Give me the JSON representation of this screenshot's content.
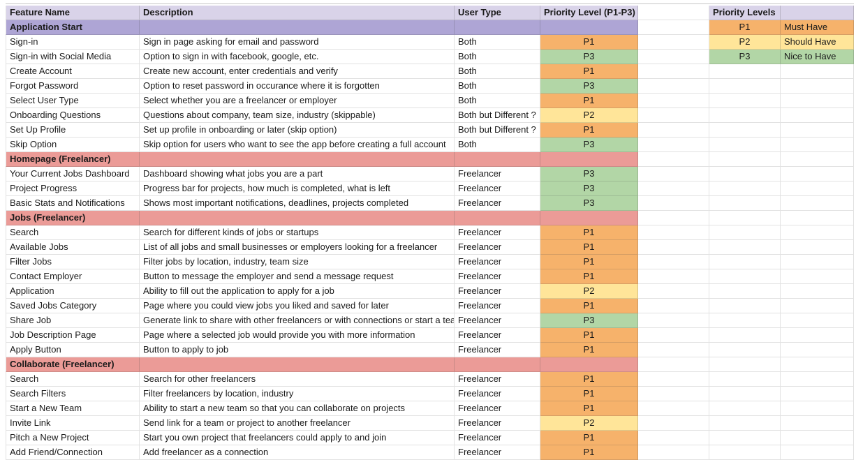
{
  "sheet": {
    "columns": [
      {
        "label": "Feature Name"
      },
      {
        "label": "Description"
      },
      {
        "label": "User Type"
      },
      {
        "label": "Priority Level (P1-P3)"
      }
    ],
    "sections": [
      {
        "title": "Application Start",
        "band_color": "#aea5d5",
        "rows": [
          {
            "feature": "Sign-in",
            "description": "Sign in page asking for email and password",
            "user_type": "Both",
            "priority": "P1"
          },
          {
            "feature": "Sign-in with Social Media",
            "description": "Option to sign in with facebook, google, etc.",
            "user_type": "Both",
            "priority": "P3"
          },
          {
            "feature": "Create Account",
            "description": "Create new account, enter credentials and verify",
            "user_type": "Both",
            "priority": "P1"
          },
          {
            "feature": "Forgot Password",
            "description": "Option to reset password in occurance where it is forgotten",
            "user_type": "Both",
            "priority": "P3"
          },
          {
            "feature": "Select User Type",
            "description": "Select whether you are a freelancer or employer",
            "user_type": "Both",
            "priority": "P1"
          },
          {
            "feature": "Onboarding Questions",
            "description": "Questions about company, team size, industry (skippable)",
            "user_type": "Both but Different ?",
            "priority": "P2"
          },
          {
            "feature": "Set Up Profile",
            "description": "Set up profile in onboarding or later (skip option)",
            "user_type": "Both but Different ?",
            "priority": "P1"
          },
          {
            "feature": "Skip Option",
            "description": "Skip option for users who want to see the app before creating a full account",
            "user_type": "Both",
            "priority": "P3"
          }
        ]
      },
      {
        "title": "Homepage (Freelancer)",
        "band_color": "#eb9b97",
        "rows": [
          {
            "feature": "Your Current Jobs Dashboard",
            "description": "Dashboard showing what jobs you are a part",
            "user_type": "Freelancer",
            "priority": "P3"
          },
          {
            "feature": "Project Progress",
            "description": "Progress bar for projects, how much is completed, what is left",
            "user_type": "Freelancer",
            "priority": "P3"
          },
          {
            "feature": "Basic Stats and Notifications",
            "description": "Shows most important notifications, deadlines, projects completed",
            "user_type": "Freelancer",
            "priority": "P3"
          }
        ]
      },
      {
        "title": "Jobs (Freelancer)",
        "band_color": "#eb9b97",
        "rows": [
          {
            "feature": "Search",
            "description": "Search for different kinds of jobs or startups",
            "user_type": "Freelancer",
            "priority": "P1"
          },
          {
            "feature": "Available Jobs",
            "description": "List of all jobs and small businesses or employers looking for a freelancer",
            "user_type": "Freelancer",
            "priority": "P1"
          },
          {
            "feature": "Filter Jobs",
            "description": "Filter jobs by location, industry, team size",
            "user_type": "Freelancer",
            "priority": "P1"
          },
          {
            "feature": "Contact Employer",
            "description": "Button to message the employer and send a message request",
            "user_type": "Freelancer",
            "priority": "P1"
          },
          {
            "feature": "Application",
            "description": "Ability to fill out the application to apply for a job",
            "user_type": "Freelancer",
            "priority": "P2"
          },
          {
            "feature": "Saved Jobs Category",
            "description": "Page where you could view jobs you liked and saved for later",
            "user_type": "Freelancer",
            "priority": "P1"
          },
          {
            "feature": "Share Job",
            "description": "Generate link to share with other freelancers or with connections or start a tea",
            "user_type": "Freelancer",
            "priority": "P3"
          },
          {
            "feature": "Job Description Page",
            "description": "Page where a selected job would provide you with more information",
            "user_type": "Freelancer",
            "priority": "P1"
          },
          {
            "feature": "Apply Button",
            "description": "Button to apply to job",
            "user_type": "Freelancer",
            "priority": "P1"
          }
        ]
      },
      {
        "title": "Collaborate (Freelancer)",
        "band_color": "#eb9b97",
        "rows": [
          {
            "feature": "Search",
            "description": "Search for other freelancers",
            "user_type": "Freelancer",
            "priority": "P1"
          },
          {
            "feature": "Search Filters",
            "description": "Filter freelancers by location, industry",
            "user_type": "Freelancer",
            "priority": "P1"
          },
          {
            "feature": "Start a New Team",
            "description": "Ability to start a new team so that you can collaborate on projects",
            "user_type": "Freelancer",
            "priority": "P1"
          },
          {
            "feature": "Invite Link",
            "description": "Send link for a team or project to another freelancer",
            "user_type": "Freelancer",
            "priority": "P2"
          },
          {
            "feature": "Pitch a New Project",
            "description": "Start you own project that freelancers could apply to and join",
            "user_type": "Freelancer",
            "priority": "P1"
          },
          {
            "feature": "Add Friend/Connection",
            "description": "Add freelancer as a connection",
            "user_type": "Freelancer",
            "priority": "P1"
          }
        ]
      }
    ],
    "legend": {
      "title": "Priority Levels",
      "entries": [
        {
          "code": "P1",
          "label": "Must Have"
        },
        {
          "code": "P2",
          "label": "Should Have"
        },
        {
          "code": "P3",
          "label": "Nice to Have"
        }
      ]
    },
    "colors": {
      "header_bg": "#d9d3e9",
      "p1": "#f6b26b",
      "p2": "#ffe599",
      "p3": "#b2d6a6"
    }
  }
}
